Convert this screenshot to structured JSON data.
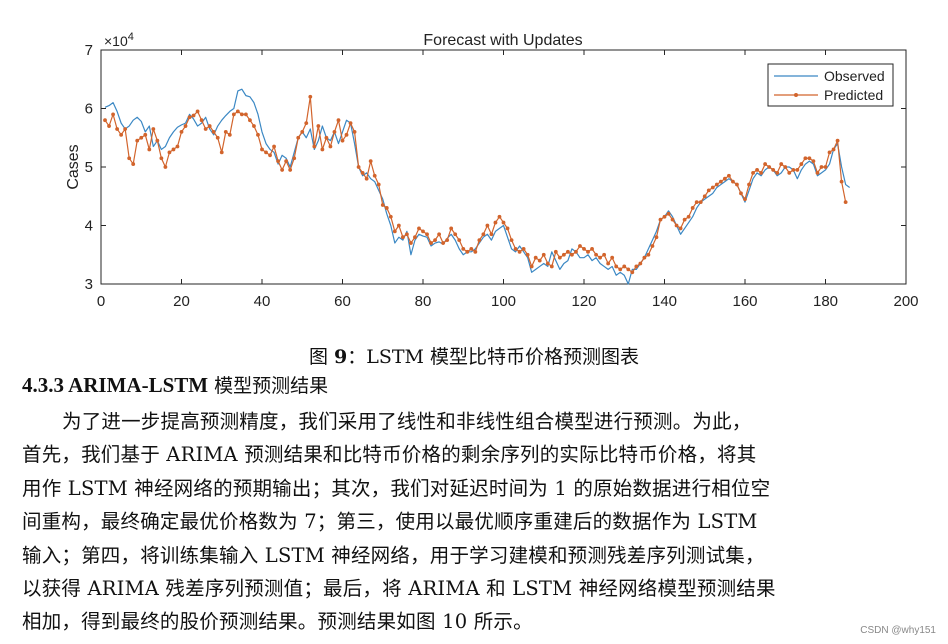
{
  "figure": {
    "caption_prefix": "图",
    "caption_number": "9",
    "caption_text": "：LSTM 模型比特币价格预测图表"
  },
  "section": {
    "number": "4.3.3",
    "title_latin": "ARIMA-LSTM",
    "title_rest": " 模型预测结果"
  },
  "paragraph_lines": [
    "为了进一步提高预测精度，我们采用了线性和非线性组合模型进行预测。为此，",
    "首先，我们基于 ARIMA 预测结果和比特币价格的剩余序列的实际比特币价格，将其",
    "用作 LSTM 神经网络的预期输出；其次，我们对延迟时间为 1 的原始数据进行相位空",
    "间重构，最终确定最优价格数为 7；第三，使用以最优顺序重建后的数据作为 LSTM",
    "输入；第四，将训练集输入 LSTM 神经网络，用于学习建模和预测残差序列测试集，",
    "以获得 ARIMA 残差序列预测值；最后，将 ARIMA 和 LSTM 神经网络模型预测结果",
    "相加，得到最终的股价预测结果。预测结果如图 10 所示。"
  ],
  "watermark": "CSDN @why151",
  "chart_data": {
    "type": "line",
    "title": "Forecast with Updates",
    "xlabel": "",
    "ylabel": "Cases",
    "y_exponent_label": "×10",
    "y_exponent": "4",
    "xlim": [
      0,
      200
    ],
    "ylim": [
      3,
      7
    ],
    "xticks": [
      0,
      20,
      40,
      60,
      80,
      100,
      120,
      140,
      160,
      180,
      200
    ],
    "yticks": [
      3,
      4,
      5,
      6,
      7
    ],
    "legend_position": "top-right",
    "colors": {
      "observed": "#3b88c4",
      "predicted": "#d2642c"
    },
    "series": [
      {
        "name": "Observed",
        "marker": "none",
        "values": [
          6.02,
          6.05,
          6.1,
          5.95,
          5.75,
          5.65,
          5.7,
          5.8,
          5.85,
          5.78,
          5.6,
          5.7,
          5.35,
          5.45,
          5.3,
          5.35,
          5.5,
          5.6,
          5.68,
          5.72,
          5.75,
          5.9,
          5.82,
          5.7,
          5.75,
          5.85,
          5.65,
          5.55,
          5.7,
          5.8,
          5.88,
          5.95,
          6.0,
          6.3,
          6.33,
          6.22,
          6.2,
          6.1,
          5.9,
          5.6,
          5.4,
          5.3,
          5.25,
          5.05,
          5.2,
          5.15,
          5.0,
          5.25,
          5.5,
          5.6,
          5.5,
          5.65,
          5.3,
          5.45,
          5.7,
          5.5,
          5.45,
          5.6,
          5.4,
          5.6,
          5.8,
          5.75,
          5.4,
          5.0,
          4.85,
          4.9,
          4.8,
          4.75,
          4.6,
          4.45,
          4.2,
          4.0,
          3.7,
          3.8,
          3.75,
          3.9,
          3.5,
          3.75,
          3.85,
          3.82,
          3.8,
          3.65,
          3.7,
          3.72,
          3.68,
          3.78,
          3.85,
          3.75,
          3.6,
          3.5,
          3.55,
          3.55,
          3.6,
          3.7,
          3.8,
          3.85,
          3.75,
          3.9,
          3.95,
          4.0,
          3.8,
          3.6,
          3.55,
          3.65,
          3.55,
          3.45,
          3.2,
          3.25,
          3.3,
          3.35,
          3.3,
          3.55,
          3.4,
          3.25,
          3.35,
          3.4,
          3.6,
          3.55,
          3.45,
          3.45,
          3.5,
          3.4,
          3.45,
          3.35,
          3.3,
          3.25,
          3.3,
          3.15,
          3.2,
          3.15,
          3.0,
          3.25,
          3.25,
          3.35,
          3.45,
          3.6,
          3.75,
          3.9,
          4.1,
          4.15,
          4.25,
          4.15,
          4.0,
          3.85,
          3.95,
          4.05,
          4.15,
          4.3,
          4.4,
          4.45,
          4.5,
          4.55,
          4.65,
          4.7,
          4.75,
          4.8,
          4.75,
          4.7,
          4.55,
          4.4,
          4.6,
          4.8,
          4.9,
          4.85,
          4.95,
          5.0,
          4.95,
          4.85,
          4.9,
          5.0,
          5.0,
          4.95,
          4.8,
          4.95,
          5.05,
          5.1,
          5.05,
          4.85,
          4.9,
          4.95,
          5.05,
          5.3,
          5.4,
          5.0,
          4.7,
          4.65
        ]
      },
      {
        "name": "Predicted",
        "marker": "dot",
        "values": [
          5.8,
          5.7,
          5.9,
          5.65,
          5.55,
          5.65,
          5.15,
          5.05,
          5.45,
          5.5,
          5.55,
          5.3,
          5.65,
          5.45,
          5.15,
          5.0,
          5.25,
          5.3,
          5.35,
          5.6,
          5.7,
          5.85,
          5.88,
          5.95,
          5.8,
          5.65,
          5.7,
          5.6,
          5.5,
          5.25,
          5.6,
          5.55,
          5.9,
          5.95,
          5.9,
          5.9,
          5.8,
          5.7,
          5.55,
          5.3,
          5.25,
          5.2,
          5.35,
          5.1,
          4.95,
          5.1,
          4.95,
          5.15,
          5.5,
          5.6,
          5.75,
          6.2,
          5.35,
          5.7,
          5.3,
          5.5,
          5.35,
          5.6,
          5.8,
          5.45,
          5.55,
          5.75,
          5.6,
          5.0,
          4.9,
          4.8,
          5.1,
          4.85,
          4.7,
          4.35,
          4.3,
          4.15,
          3.9,
          4.0,
          3.8,
          3.85,
          3.7,
          3.8,
          3.95,
          3.9,
          3.85,
          3.7,
          3.75,
          3.85,
          3.7,
          3.75,
          3.95,
          3.85,
          3.75,
          3.6,
          3.55,
          3.6,
          3.55,
          3.75,
          3.85,
          4.0,
          3.85,
          4.05,
          4.15,
          4.05,
          3.95,
          3.75,
          3.6,
          3.55,
          3.6,
          3.5,
          3.3,
          3.45,
          3.4,
          3.5,
          3.35,
          3.3,
          3.55,
          3.45,
          3.5,
          3.55,
          3.5,
          3.55,
          3.65,
          3.6,
          3.55,
          3.6,
          3.5,
          3.45,
          3.5,
          3.35,
          3.45,
          3.3,
          3.25,
          3.3,
          3.25,
          3.2,
          3.3,
          3.35,
          3.45,
          3.5,
          3.65,
          3.8,
          4.1,
          4.15,
          4.2,
          4.1,
          4.0,
          3.95,
          4.1,
          4.15,
          4.3,
          4.4,
          4.4,
          4.5,
          4.6,
          4.65,
          4.7,
          4.75,
          4.8,
          4.85,
          4.75,
          4.7,
          4.55,
          4.45,
          4.7,
          4.9,
          4.95,
          4.9,
          5.05,
          5.0,
          4.95,
          4.9,
          5.05,
          5.0,
          4.9,
          4.95,
          4.95,
          5.05,
          5.15,
          5.15,
          5.1,
          4.9,
          5.0,
          5.0,
          5.25,
          5.3,
          5.45,
          4.75,
          4.4
        ]
      }
    ]
  }
}
